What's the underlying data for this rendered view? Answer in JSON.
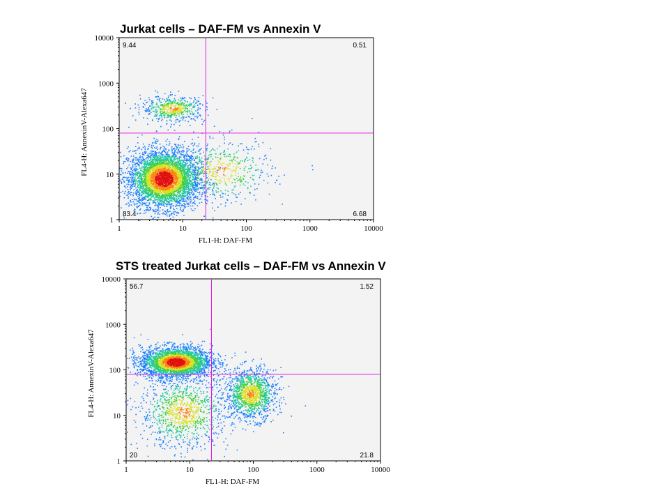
{
  "chart_data": [
    {
      "type": "scatter",
      "title": "Jurkat cells – DAF-FM vs Annexin V",
      "xlabel": "FL1-H: DAF-FM",
      "ylabel": "FL4-H: AnnexinV-Alexa647",
      "xscale": "log",
      "yscale": "log",
      "xlim": [
        1,
        10000
      ],
      "ylim": [
        1,
        10000
      ],
      "x_ticks": [
        "1",
        "10",
        "100",
        "1000",
        "10000"
      ],
      "y_ticks": [
        "1",
        "10",
        "100",
        "1000",
        "10000"
      ],
      "gates": {
        "x": 23,
        "y": 80,
        "y_line_xmax": 10000
      },
      "quadrants": {
        "upper_left": "9.44",
        "upper_right": "0.51",
        "lower_left": "83.4",
        "lower_right": "6.68"
      },
      "populations": [
        {
          "name": "",
          "center": [
            5,
            8
          ],
          "spread": [
            0.28,
            0.32
          ],
          "fraction": 0.8
        },
        {
          "name": "",
          "center": [
            7,
            280
          ],
          "spread": [
            0.25,
            0.14
          ],
          "fraction": 0.1
        },
        {
          "name": "",
          "center": [
            40,
            12
          ],
          "spread": [
            0.4,
            0.35
          ],
          "fraction": 0.1
        }
      ]
    },
    {
      "type": "scatter",
      "title": "STS treated Jurkat cells – DAF-FM vs Annexin V",
      "xlabel": "FL1-H: DAF-FM",
      "ylabel": "FL4-H: AnnexinV-Alexa647",
      "xscale": "log",
      "yscale": "log",
      "xlim": [
        1,
        10000
      ],
      "ylim": [
        1,
        10000
      ],
      "x_ticks": [
        "1",
        "10",
        "100",
        "1000",
        "10000"
      ],
      "y_ticks": [
        "1",
        "10",
        "100",
        "1000",
        "10000"
      ],
      "gates": {
        "x": 22,
        "y": 80,
        "y_line_xmax": 10000
      },
      "quadrants": {
        "upper_left": "56.7",
        "upper_right": "1.52",
        "lower_left": "20",
        "lower_right": "21.8"
      },
      "populations": [
        {
          "name": "",
          "center": [
            6,
            150
          ],
          "spread": [
            0.28,
            0.17
          ],
          "fraction": 0.55
        },
        {
          "name": "",
          "center": [
            90,
            30
          ],
          "spread": [
            0.2,
            0.28
          ],
          "fraction": 0.25
        },
        {
          "name": "",
          "center": [
            8,
            12
          ],
          "spread": [
            0.35,
            0.4
          ],
          "fraction": 0.2
        }
      ]
    }
  ]
}
